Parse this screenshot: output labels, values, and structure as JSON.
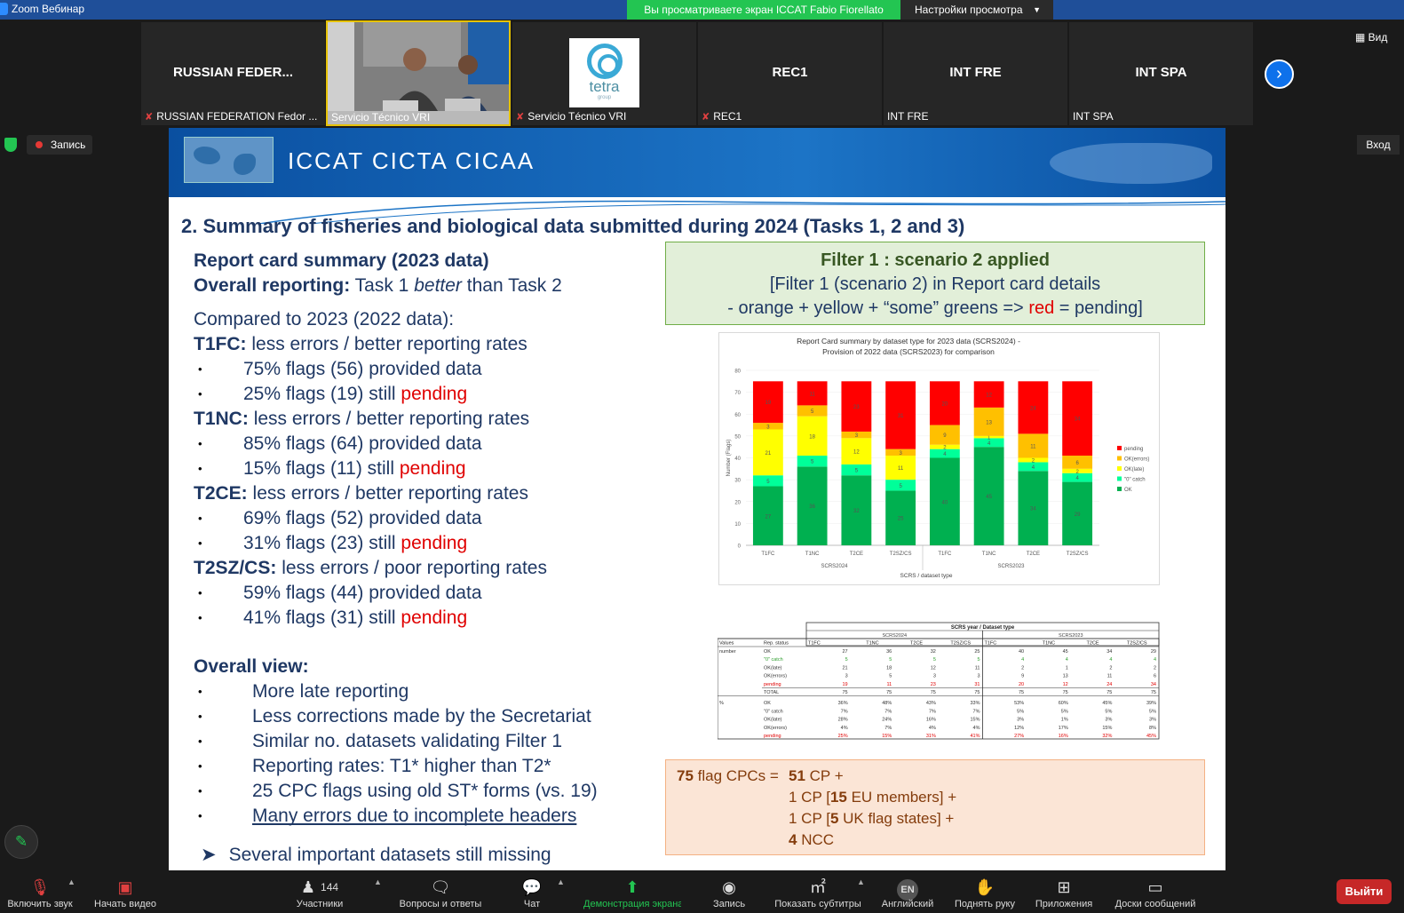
{
  "titlebar": {
    "app_title": "Zoom Вебинар",
    "share_notice": "Вы просматриваете экран ICCAT Fabio Fiorellato",
    "view_options": "Настройки просмотра"
  },
  "participants": [
    {
      "big": "RUSSIAN FEDER...",
      "name": "RUSSIAN FEDERATION Fedor ...",
      "muted": true
    },
    {
      "big": "",
      "name": "Servicio Técnico VRI",
      "muted": false
    },
    {
      "big": "",
      "name": "Servicio Técnico VRI",
      "muted": true
    },
    {
      "big": "REC1",
      "name": "REC1",
      "muted": true
    },
    {
      "big": "INT FRE",
      "name": "INT FRE",
      "muted": false
    },
    {
      "big": "INT SPA",
      "name": "INT SPA",
      "muted": false
    }
  ],
  "tetra": {
    "text": "tetra",
    "sub": "group"
  },
  "top_controls": {
    "view": "Вид",
    "record": "Запись",
    "enter": "Вход"
  },
  "slide": {
    "banner": "ICCAT  CICTA  CICAA",
    "title": "2. Summary of fisheries and biological data submitted during 2024 (Tasks 1, 2 and 3)",
    "left": {
      "report_card": "Report card summary (2023 data)",
      "overall_label": "Overall reporting:",
      "overall_t1": "Task 1",
      "overall_better": "better",
      "overall_t2": "than Task 2",
      "compared": "Compared to 2023 (2022 data):",
      "groups": [
        {
          "head": "T1FC:",
          "desc": "less errors / better reporting rates",
          "provided": "75% flags (56) provided data",
          "still": "25% flags (19) still",
          "pending": "pending"
        },
        {
          "head": "T1NC:",
          "desc": "less errors / better reporting rates",
          "provided": "85% flags (64) provided data",
          "still": "15% flags (11) still",
          "pending": "pending"
        },
        {
          "head": "T2CE:",
          "desc": "less errors / better reporting rates",
          "provided": "69% flags (52) provided data",
          "still": "31% flags (23) still",
          "pending": "pending"
        },
        {
          "head": "T2SZ/CS:",
          "desc": "less errors / poor reporting rates",
          "provided": "59% flags (44) provided data",
          "still": "41% flags (31) still",
          "pending": "pending"
        }
      ],
      "overall_view": "Overall view:",
      "view_items": [
        "More late reporting",
        "Less corrections made by the Secretariat",
        "Similar no. datasets validating Filter 1",
        "Reporting rates: T1* higher than T2*",
        "25 CPC flags using old ST* forms (vs. 19)",
        "Many errors due to incomplete headers"
      ],
      "cut_line": "Several important datasets still missing"
    },
    "filter": {
      "title": "Filter 1 : scenario 2 applied",
      "line1": "[Filter 1 (scenario 2) in Report card details",
      "line2a": "- orange + yellow + “some” greens =>",
      "line2b": "red",
      "line2c": "= pending]"
    },
    "cpc": {
      "lead_num": "75",
      "lead_txt": "flag CPCs =",
      "lines": [
        {
          "b": "51",
          "t": "CP +"
        },
        {
          "pre": "1 CP [",
          "b": "15",
          "t": "EU members] +"
        },
        {
          "pre": "1 CP [",
          "b": "5",
          "t": "UK flag states] +"
        },
        {
          "b": "4",
          "t": "NCC"
        }
      ]
    }
  },
  "chart_data": {
    "type": "bar",
    "title": "Report Card summary by dataset type for 2023 data (SCRS2024) - Provision of 2022 data (SCRS2023) for comparison",
    "xlabel": "SCRS / dataset type",
    "ylabel": "Number (Flags)",
    "ylim": [
      0,
      80
    ],
    "yticks": [
      0,
      10,
      20,
      30,
      40,
      50,
      60,
      70,
      80
    ],
    "categories": [
      "T1FC",
      "T1NC",
      "T2CE",
      "T2SZ/CS",
      "T1FC",
      "T1NC",
      "T2CE",
      "T2SZ/CS"
    ],
    "groups": [
      {
        "name": "SCRS2024"
      },
      {
        "name": "SCRS2023"
      }
    ],
    "series": [
      {
        "name": "OK",
        "color": "#00b050",
        "values": [
          27,
          36,
          32,
          25,
          40,
          45,
          34,
          29
        ]
      },
      {
        "name": "\"0\" catch",
        "color": "#00ff99",
        "values": [
          5,
          5,
          5,
          5,
          4,
          4,
          4,
          4
        ]
      },
      {
        "name": "OK(late)",
        "color": "#ffff00",
        "values": [
          21,
          18,
          12,
          11,
          2,
          1,
          2,
          2
        ]
      },
      {
        "name": "OK(errors)",
        "color": "#ffc000",
        "values": [
          3,
          5,
          3,
          3,
          9,
          13,
          11,
          6
        ]
      },
      {
        "name": "pending",
        "color": "#ff0000",
        "values": [
          19,
          11,
          23,
          31,
          20,
          12,
          24,
          34
        ]
      }
    ],
    "legend_order": [
      "pending",
      "OK(errors)",
      "OK(late)",
      "\"0\" catch",
      "OK"
    ],
    "legend": "right"
  },
  "table": {
    "title": "SCRS year / Dataset type",
    "years": [
      "SCRS2024",
      "SCRS2023"
    ],
    "cols": [
      "T1FC",
      "T1NC",
      "T2CE",
      "T2SZ/CS",
      "T1FC",
      "T1NC",
      "T2CE",
      "T2SZ/CS"
    ],
    "head": [
      "Values",
      "Rep. status"
    ],
    "rows": [
      {
        "g": "number",
        "s": "OK",
        "v": [
          "27",
          "36",
          "32",
          "25",
          "40",
          "45",
          "34",
          "29"
        ]
      },
      {
        "g": "",
        "s": "\"0\" catch",
        "v": [
          "5",
          "5",
          "5",
          "5",
          "4",
          "4",
          "4",
          "4"
        ],
        "c": "#2e9e2e"
      },
      {
        "g": "",
        "s": "OK(late)",
        "v": [
          "21",
          "18",
          "12",
          "11",
          "2",
          "1",
          "2",
          "2"
        ]
      },
      {
        "g": "",
        "s": "OK(errors)",
        "v": [
          "3",
          "5",
          "3",
          "3",
          "9",
          "13",
          "11",
          "6"
        ]
      },
      {
        "g": "",
        "s": "pending",
        "v": [
          "19",
          "11",
          "23",
          "31",
          "20",
          "12",
          "24",
          "34"
        ],
        "c": "#e00000"
      },
      {
        "g": "",
        "s": "TOTAL",
        "v": [
          "75",
          "75",
          "75",
          "75",
          "75",
          "75",
          "75",
          "75"
        ]
      },
      {
        "g": "%",
        "s": "OK",
        "v": [
          "36%",
          "48%",
          "43%",
          "33%",
          "53%",
          "60%",
          "45%",
          "39%"
        ]
      },
      {
        "g": "",
        "s": "\"0\" catch",
        "v": [
          "7%",
          "7%",
          "7%",
          "7%",
          "5%",
          "5%",
          "5%",
          "5%"
        ]
      },
      {
        "g": "",
        "s": "OK(late)",
        "v": [
          "28%",
          "24%",
          "16%",
          "15%",
          "3%",
          "1%",
          "3%",
          "3%"
        ]
      },
      {
        "g": "",
        "s": "OK(errors)",
        "v": [
          "4%",
          "7%",
          "4%",
          "4%",
          "12%",
          "17%",
          "15%",
          "8%"
        ]
      },
      {
        "g": "",
        "s": "pending",
        "v": [
          "25%",
          "15%",
          "31%",
          "41%",
          "27%",
          "16%",
          "32%",
          "45%"
        ],
        "c": "#e00000"
      }
    ]
  },
  "toolbar": {
    "items": [
      {
        "label": "Включить звук",
        "icon": "mic-muted-icon"
      },
      {
        "label": "Начать видео",
        "icon": "video-off-icon"
      },
      {
        "label": "Участники",
        "icon": "participants-icon",
        "count": "144"
      },
      {
        "label": "Вопросы и ответы",
        "icon": "qa-icon"
      },
      {
        "label": "Чат",
        "icon": "chat-icon"
      },
      {
        "label": "Демонстрация экрана",
        "icon": "share-screen-icon"
      },
      {
        "label": "Запись",
        "icon": "record-icon"
      },
      {
        "label": "Показать субтитры",
        "icon": "captions-icon"
      },
      {
        "label": "Английский",
        "icon": "language-icon",
        "badge": "EN"
      },
      {
        "label": "Поднять руку",
        "icon": "raise-hand-icon"
      },
      {
        "label": "Приложения",
        "icon": "apps-icon"
      },
      {
        "label": "Доски сообщений",
        "icon": "whiteboard-icon"
      }
    ],
    "leave": "Выйти"
  }
}
